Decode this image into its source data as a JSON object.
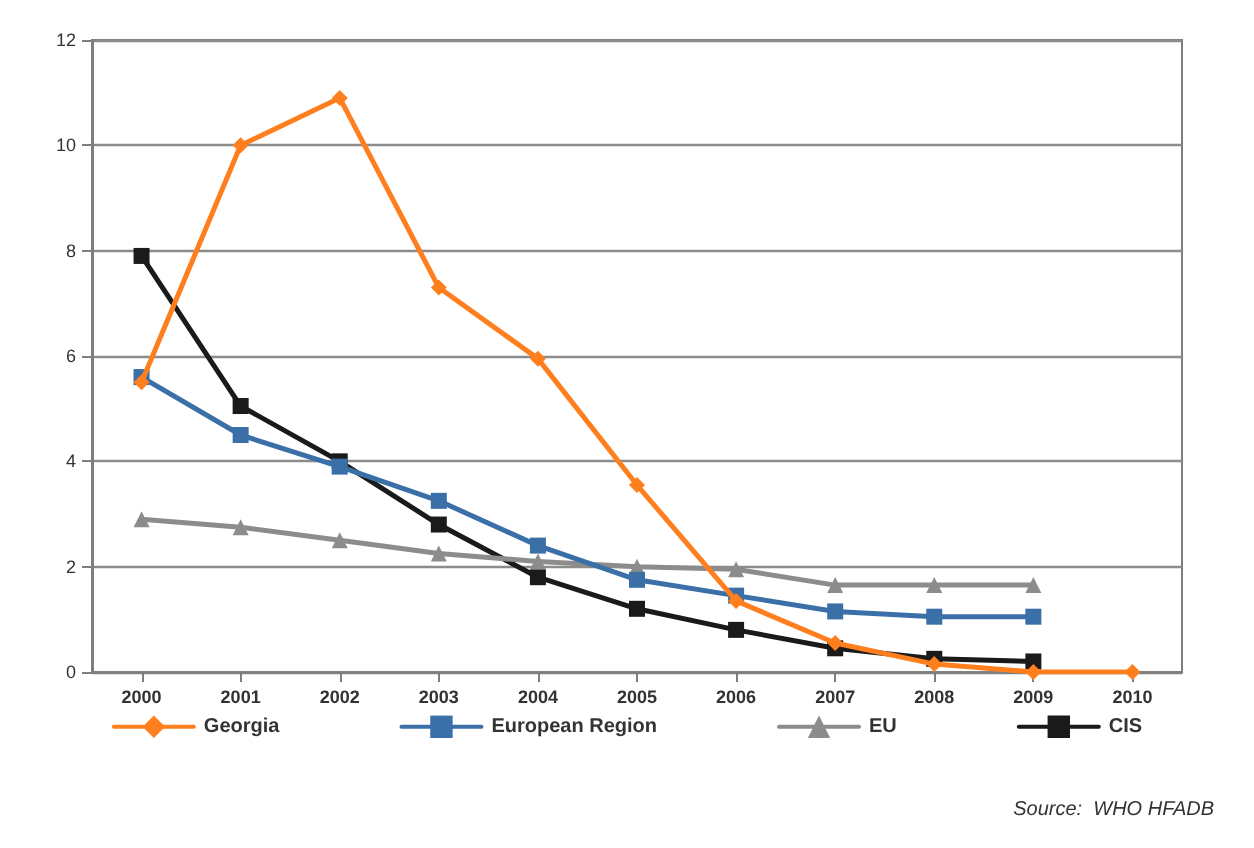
{
  "chart_data": {
    "type": "line",
    "categories": [
      "2000",
      "2001",
      "2002",
      "2003",
      "2004",
      "2005",
      "2006",
      "2007",
      "2008",
      "2009",
      "2010"
    ],
    "series": [
      {
        "name": "Georgia",
        "color": "#ff7f1e",
        "marker": "diamond",
        "values": [
          5.5,
          10.0,
          10.9,
          7.3,
          5.95,
          3.55,
          1.35,
          0.55,
          0.15,
          0.0,
          0.0
        ]
      },
      {
        "name": "European Region",
        "color": "#3a6fa8",
        "marker": "square",
        "values": [
          5.6,
          4.5,
          3.9,
          3.25,
          2.4,
          1.75,
          1.45,
          1.15,
          1.05,
          1.05,
          null
        ]
      },
      {
        "name": "EU",
        "color": "#8c8c8c",
        "marker": "triangle",
        "values": [
          2.9,
          2.75,
          2.5,
          2.25,
          2.1,
          2.0,
          1.95,
          1.65,
          1.65,
          1.65,
          null
        ]
      },
      {
        "name": "CIS",
        "color": "#1a1a1a",
        "marker": "square",
        "values": [
          7.9,
          5.05,
          4.0,
          2.8,
          1.8,
          1.2,
          0.8,
          0.45,
          0.25,
          0.2,
          null
        ]
      }
    ],
    "ylim": [
      0,
      12
    ],
    "yticks": [
      0,
      2,
      4,
      6,
      8,
      10,
      12
    ],
    "grid": "y",
    "legend": "bottom",
    "annotations": [
      "Source:  WHO HFADB"
    ]
  }
}
